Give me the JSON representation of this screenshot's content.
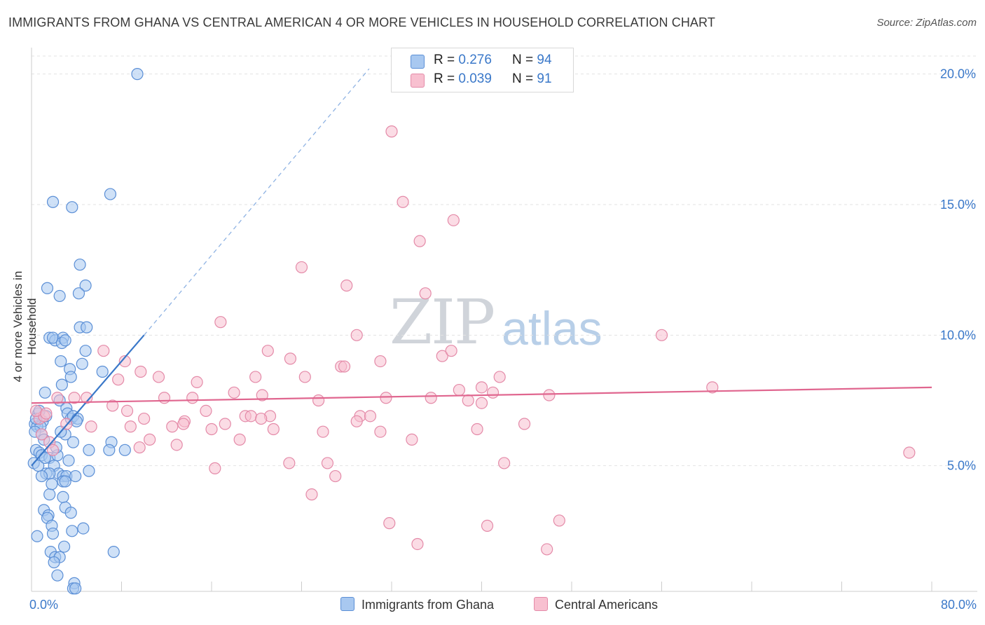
{
  "title": "IMMIGRANTS FROM GHANA VS CENTRAL AMERICAN 4 OR MORE VEHICLES IN HOUSEHOLD CORRELATION CHART",
  "source": "Source: ZipAtlas.com",
  "watermark": {
    "zip": "ZIP",
    "atlas": "atlas"
  },
  "legend_top": [
    {
      "r_label": "R =",
      "r_value": "0.276",
      "n_label": "N =",
      "n_value": "94",
      "color": "#a8c8f0",
      "border": "#5b8fd6"
    },
    {
      "r_label": "R =",
      "r_value": "0.039",
      "n_label": "N =",
      "n_value": "91",
      "color": "#f8c0d0",
      "border": "#e48aa8"
    }
  ],
  "legend_bottom": [
    {
      "label": "Immigrants from Ghana",
      "color": "#a8c8f0",
      "border": "#5b8fd6"
    },
    {
      "label": "Central Americans",
      "color": "#f8c0d0",
      "border": "#e48aa8"
    }
  ],
  "chart_data": {
    "type": "scatter",
    "title": "IMMIGRANTS FROM GHANA VS CENTRAL AMERICAN 4 OR MORE VEHICLES IN HOUSEHOLD CORRELATION CHART",
    "xlabel": "",
    "ylabel": "4 or more Vehicles in Household",
    "xlim": [
      0,
      80
    ],
    "ylim": [
      0,
      20.5
    ],
    "x_ticks": [
      "0.0%",
      "80.0%"
    ],
    "y_ticks": [
      {
        "value": 5,
        "label": "5.0%"
      },
      {
        "value": 10,
        "label": "10.0%"
      },
      {
        "value": 15,
        "label": "15.0%"
      },
      {
        "value": 20,
        "label": "20.0%"
      }
    ],
    "grid": true,
    "legend_position": "top-center",
    "series": [
      {
        "name": "Immigrants from Ghana",
        "color": "#5b8fd6",
        "fill": "#a8c8f0",
        "trend": {
          "x": [
            0,
            10
          ],
          "y": [
            5.0,
            10.0
          ],
          "dashed_to": [
            30,
            20.2
          ]
        },
        "points": [
          [
            9.4,
            20.0
          ],
          [
            7.0,
            15.4
          ],
          [
            1.9,
            15.1
          ],
          [
            3.6,
            14.9
          ],
          [
            4.3,
            12.7
          ],
          [
            1.4,
            11.8
          ],
          [
            4.8,
            11.9
          ],
          [
            2.5,
            11.5
          ],
          [
            4.2,
            11.6
          ],
          [
            4.3,
            10.3
          ],
          [
            4.9,
            10.3
          ],
          [
            1.6,
            9.9
          ],
          [
            2.1,
            9.8
          ],
          [
            1.9,
            9.9
          ],
          [
            2.8,
            9.9
          ],
          [
            2.7,
            9.7
          ],
          [
            3.0,
            9.8
          ],
          [
            4.8,
            9.4
          ],
          [
            2.6,
            9.0
          ],
          [
            4.5,
            8.9
          ],
          [
            6.3,
            8.6
          ],
          [
            3.4,
            8.7
          ],
          [
            3.5,
            8.4
          ],
          [
            2.7,
            8.1
          ],
          [
            1.2,
            7.8
          ],
          [
            2.5,
            7.5
          ],
          [
            3.1,
            7.2
          ],
          [
            3.2,
            7.0
          ],
          [
            3.5,
            6.8
          ],
          [
            3.7,
            6.9
          ],
          [
            4.1,
            6.8
          ],
          [
            0.6,
            7.0
          ],
          [
            1.0,
            6.7
          ],
          [
            0.3,
            6.6
          ],
          [
            0.5,
            6.5
          ],
          [
            0.8,
            6.5
          ],
          [
            0.3,
            6.3
          ],
          [
            0.9,
            6.2
          ],
          [
            1.1,
            6.0
          ],
          [
            3.0,
            6.2
          ],
          [
            0.4,
            5.6
          ],
          [
            0.7,
            5.5
          ],
          [
            0.9,
            5.4
          ],
          [
            3.7,
            5.9
          ],
          [
            7.1,
            5.9
          ],
          [
            6.9,
            5.6
          ],
          [
            8.3,
            5.6
          ],
          [
            5.1,
            5.6
          ],
          [
            1.6,
            5.3
          ],
          [
            2.3,
            5.4
          ],
          [
            2.0,
            5.0
          ],
          [
            2.4,
            4.7
          ],
          [
            1.3,
            4.7
          ],
          [
            1.6,
            4.7
          ],
          [
            0.9,
            4.6
          ],
          [
            2.8,
            4.6
          ],
          [
            3.1,
            4.6
          ],
          [
            3.9,
            4.6
          ],
          [
            2.8,
            4.4
          ],
          [
            3.0,
            4.4
          ],
          [
            5.1,
            4.8
          ],
          [
            1.6,
            3.9
          ],
          [
            2.8,
            3.8
          ],
          [
            3.0,
            3.4
          ],
          [
            1.1,
            3.3
          ],
          [
            1.5,
            3.1
          ],
          [
            3.5,
            3.2
          ],
          [
            1.4,
            3.0
          ],
          [
            1.8,
            2.7
          ],
          [
            3.6,
            2.5
          ],
          [
            4.6,
            2.6
          ],
          [
            0.5,
            2.3
          ],
          [
            1.9,
            2.4
          ],
          [
            2.9,
            1.9
          ],
          [
            1.7,
            1.7
          ],
          [
            2.1,
            1.5
          ],
          [
            2.5,
            1.5
          ],
          [
            7.3,
            1.7
          ],
          [
            2.0,
            1.3
          ],
          [
            2.3,
            0.8
          ],
          [
            3.8,
            0.5
          ],
          [
            3.7,
            0.3
          ],
          [
            3.9,
            0.3
          ],
          [
            0.2,
            5.1
          ],
          [
            0.6,
            5.0
          ],
          [
            1.2,
            5.3
          ],
          [
            0.4,
            6.8
          ],
          [
            1.3,
            6.9
          ],
          [
            0.7,
            7.1
          ],
          [
            2.2,
            5.7
          ],
          [
            4.0,
            6.7
          ],
          [
            2.6,
            6.3
          ],
          [
            1.8,
            4.3
          ],
          [
            3.3,
            5.2
          ]
        ]
      },
      {
        "name": "Central Americans",
        "color": "#e48aa8",
        "fill": "#f8c0d0",
        "trend": {
          "x": [
            0,
            80
          ],
          "y": [
            7.4,
            8.0
          ]
        },
        "points": [
          [
            32.0,
            17.8
          ],
          [
            33.0,
            15.1
          ],
          [
            37.5,
            14.4
          ],
          [
            34.5,
            13.6
          ],
          [
            24.0,
            12.6
          ],
          [
            28.0,
            11.9
          ],
          [
            35.0,
            11.6
          ],
          [
            16.8,
            10.5
          ],
          [
            28.9,
            10.0
          ],
          [
            56.0,
            10.0
          ],
          [
            6.4,
            9.4
          ],
          [
            21.0,
            9.4
          ],
          [
            23.0,
            9.1
          ],
          [
            36.5,
            9.2
          ],
          [
            37.3,
            9.4
          ],
          [
            8.3,
            9.0
          ],
          [
            27.5,
            8.8
          ],
          [
            27.8,
            8.8
          ],
          [
            31.0,
            9.0
          ],
          [
            9.7,
            8.6
          ],
          [
            19.9,
            8.4
          ],
          [
            24.3,
            8.4
          ],
          [
            41.6,
            8.4
          ],
          [
            7.7,
            8.3
          ],
          [
            11.3,
            8.4
          ],
          [
            14.7,
            8.2
          ],
          [
            38.0,
            7.9
          ],
          [
            40.0,
            8.0
          ],
          [
            41.0,
            7.8
          ],
          [
            60.5,
            8.0
          ],
          [
            18.0,
            7.8
          ],
          [
            20.5,
            7.7
          ],
          [
            31.5,
            7.6
          ],
          [
            11.8,
            7.6
          ],
          [
            14.3,
            7.6
          ],
          [
            25.5,
            7.5
          ],
          [
            35.5,
            7.6
          ],
          [
            38.8,
            7.5
          ],
          [
            40.0,
            7.4
          ],
          [
            46.0,
            7.7
          ],
          [
            2.3,
            7.6
          ],
          [
            3.8,
            7.6
          ],
          [
            4.9,
            7.6
          ],
          [
            7.2,
            7.3
          ],
          [
            8.5,
            7.1
          ],
          [
            15.5,
            7.1
          ],
          [
            19.0,
            6.9
          ],
          [
            19.5,
            6.9
          ],
          [
            21.2,
            6.9
          ],
          [
            29.2,
            6.9
          ],
          [
            30.1,
            6.9
          ],
          [
            13.6,
            6.7
          ],
          [
            17.2,
            6.6
          ],
          [
            20.4,
            6.8
          ],
          [
            28.9,
            6.7
          ],
          [
            43.8,
            6.6
          ],
          [
            12.5,
            6.5
          ],
          [
            13.5,
            6.6
          ],
          [
            16.0,
            6.4
          ],
          [
            21.5,
            6.4
          ],
          [
            25.9,
            6.3
          ],
          [
            31.0,
            6.3
          ],
          [
            39.6,
            6.4
          ],
          [
            8.8,
            6.5
          ],
          [
            10.5,
            6.0
          ],
          [
            18.5,
            6.0
          ],
          [
            33.8,
            6.0
          ],
          [
            12.9,
            5.8
          ],
          [
            9.6,
            5.7
          ],
          [
            1.6,
            5.9
          ],
          [
            1.9,
            5.6
          ],
          [
            0.9,
            6.2
          ],
          [
            0.7,
            6.8
          ],
          [
            1.1,
            6.9
          ],
          [
            0.4,
            7.1
          ],
          [
            1.3,
            7.0
          ],
          [
            16.3,
            4.9
          ],
          [
            22.9,
            5.1
          ],
          [
            26.3,
            5.1
          ],
          [
            42.0,
            5.1
          ],
          [
            78.0,
            5.5
          ],
          [
            27.0,
            4.6
          ],
          [
            24.9,
            3.9
          ],
          [
            31.8,
            2.8
          ],
          [
            40.5,
            2.7
          ],
          [
            46.9,
            2.9
          ],
          [
            34.3,
            2.0
          ],
          [
            45.8,
            1.8
          ],
          [
            5.3,
            6.5
          ],
          [
            10.0,
            6.8
          ],
          [
            3.1,
            6.6
          ]
        ]
      }
    ]
  }
}
